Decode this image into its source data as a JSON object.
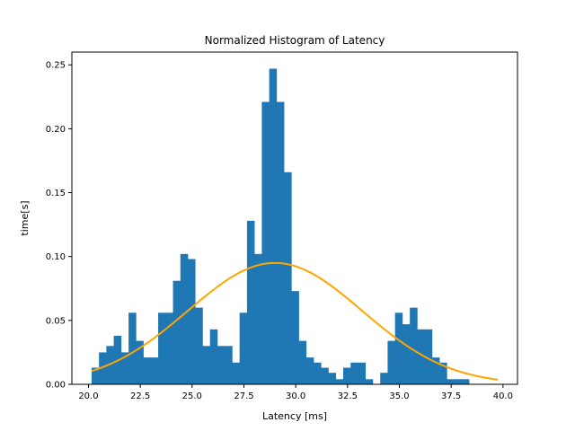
{
  "chart_data": {
    "type": "bar",
    "title": "Normalized Histogram of Latency",
    "xlabel": "Latency [ms]",
    "ylabel": "time[s]",
    "xlim": [
      19.2,
      40.7
    ],
    "ylim": [
      0,
      0.26
    ],
    "grid": false,
    "colors": {
      "bars": "#1f77b4",
      "curve": "#ffa500",
      "axes": "#000000"
    },
    "xticks": [
      20.0,
      22.5,
      25.0,
      27.5,
      30.0,
      32.5,
      35.0,
      37.5,
      40.0
    ],
    "xtick_labels": [
      "20.0",
      "22.5",
      "25.0",
      "27.5",
      "30.0",
      "32.5",
      "35.0",
      "37.5",
      "40.0"
    ],
    "yticks": [
      0.0,
      0.05,
      0.1,
      0.15,
      0.2,
      0.25
    ],
    "ytick_labels": [
      "0.00",
      "0.05",
      "0.10",
      "0.15",
      "0.20",
      "0.25"
    ],
    "bins": {
      "start": 20.15,
      "width": 0.3571,
      "values": [
        0.013,
        0.025,
        0.03,
        0.038,
        0.025,
        0.056,
        0.034,
        0.021,
        0.021,
        0.056,
        0.056,
        0.081,
        0.102,
        0.098,
        0.06,
        0.03,
        0.043,
        0.03,
        0.03,
        0.017,
        0.056,
        0.128,
        0.102,
        0.221,
        0.247,
        0.221,
        0.166,
        0.073,
        0.034,
        0.021,
        0.017,
        0.013,
        0.009,
        0.004,
        0.013,
        0.017,
        0.017,
        0.004,
        0.0,
        0.009,
        0.034,
        0.056,
        0.047,
        0.06,
        0.043,
        0.043,
        0.021,
        0.017,
        0.004,
        0.004,
        0.004,
        0.0,
        0.0
      ]
    },
    "series": [
      {
        "type": "line",
        "mean": 29.0,
        "std": 4.2,
        "x_range": [
          20.15,
          39.75
        ]
      }
    ]
  }
}
